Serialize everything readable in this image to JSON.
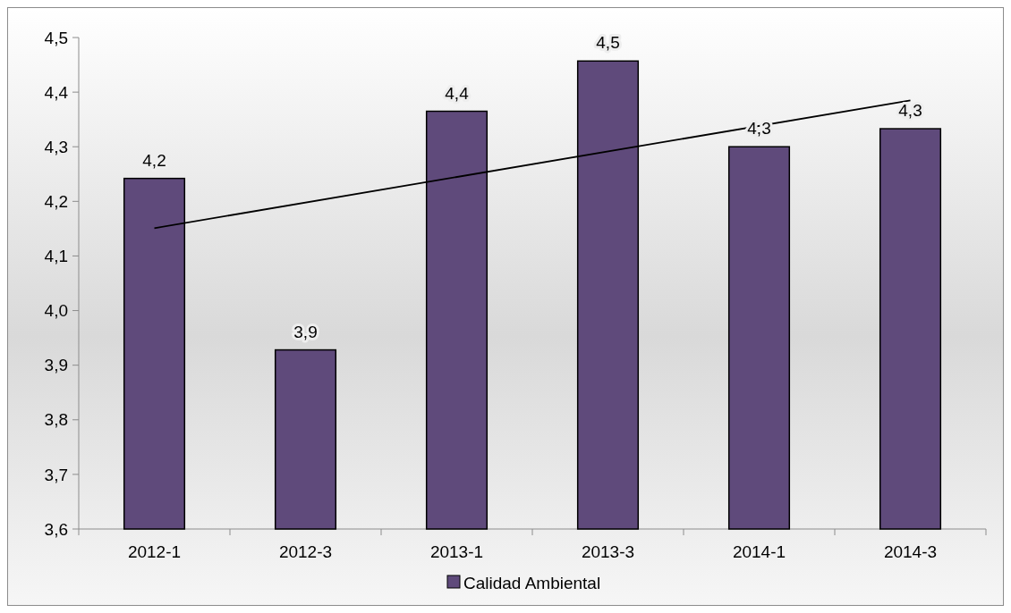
{
  "chart_data": {
    "type": "bar",
    "categories": [
      "2012-1",
      "2012-3",
      "2013-1",
      "2013-3",
      "2014-1",
      "2014-3"
    ],
    "series": [
      {
        "name": "Calidad Ambiental",
        "color": "#5f4a7b",
        "values": [
          4.242,
          3.928,
          4.365,
          4.457,
          4.3,
          4.333
        ],
        "value_labels": [
          "4,2",
          "3,9",
          "4,4",
          "4,5",
          "4,3",
          "4,3"
        ]
      },
      {
        "type": "line",
        "color": "#000000",
        "x": [
          "2012-1",
          "2014-3"
        ],
        "values": [
          4.151,
          4.385
        ]
      }
    ],
    "ylim": [
      3.6,
      4.5
    ],
    "yticks": [
      {
        "value": 3.6,
        "label": "3,6"
      },
      {
        "value": 3.7,
        "label": "3,7"
      },
      {
        "value": 3.8,
        "label": "3,8"
      },
      {
        "value": 3.9,
        "label": "3,9"
      },
      {
        "value": 4.0,
        "label": "4,0"
      },
      {
        "value": 4.1,
        "label": "4,1"
      },
      {
        "value": 4.2,
        "label": "4,2"
      },
      {
        "value": 4.3,
        "label": "4,3"
      },
      {
        "value": 4.4,
        "label": "4,4"
      },
      {
        "value": 4.5,
        "label": "4,5"
      }
    ],
    "legend": "bottom"
  }
}
